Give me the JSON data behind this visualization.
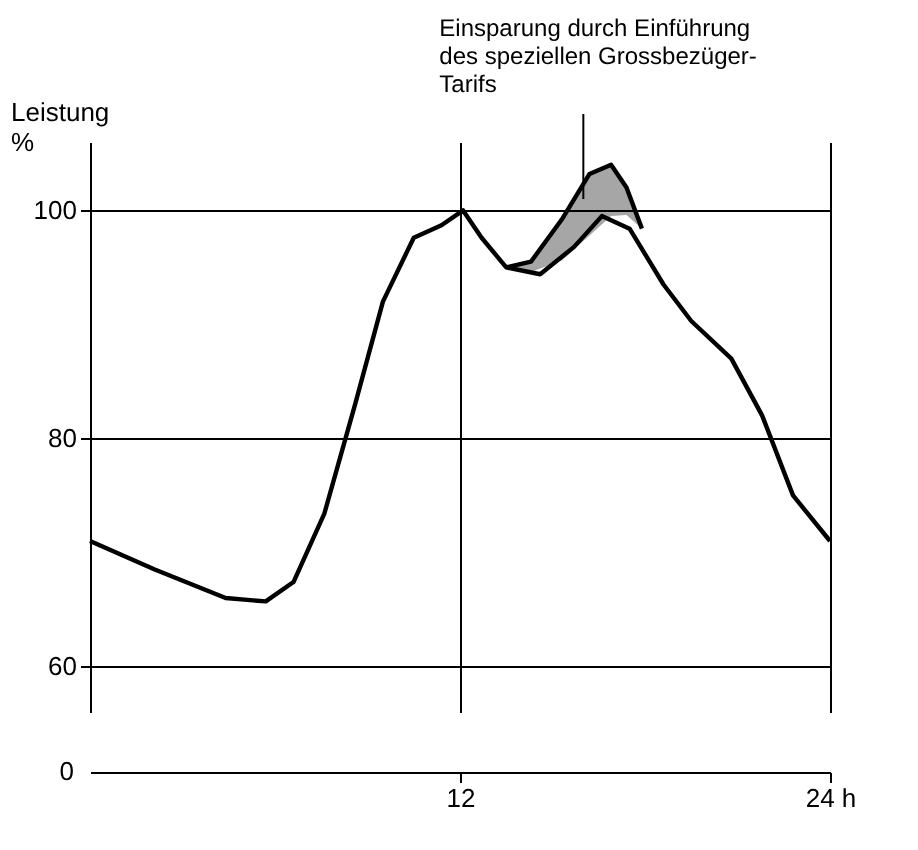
{
  "chart_data": {
    "type": "line",
    "ylabel": "Leistung\n%",
    "x": [
      0,
      2.1,
      4.4,
      5.7,
      6.6,
      7.6,
      8.6,
      9.5,
      10.5,
      11.4,
      12.1,
      12.7,
      13.5,
      14.6,
      15.7,
      16.6,
      17.5,
      18.6,
      19.5,
      20.8,
      21.8,
      22.8,
      24
    ],
    "series": [
      {
        "color": "#000000",
        "values": [
          71,
          68.5,
          66,
          65.7,
          67.4,
          73.4,
          83,
          92,
          97.6,
          98.7,
          100,
          97.6,
          95,
          94.4,
          96.8,
          99.5,
          98.4,
          93.5,
          90.3,
          87,
          82,
          75,
          71
        ]
      },
      {
        "color": "#000000",
        "x": [
          13.5,
          14.3,
          15.3,
          16.2,
          16.9,
          17.4,
          17.9
        ],
        "values": [
          95,
          95.5,
          99.2,
          103.2,
          104,
          102,
          98.4
        ],
        "lower": [
          95,
          94.6,
          95.6,
          97.8,
          99.5,
          99.6,
          98.4
        ],
        "upper": [
          95,
          95.5,
          99.2,
          103.2,
          104,
          102,
          98.4
        ]
      }
    ],
    "xlim": [
      0,
      24
    ],
    "xticks": [
      12,
      {
        "value": 24,
        "label": "24 h"
      }
    ],
    "ylim": [
      56,
      106
    ],
    "yticks": [
      60,
      80,
      100
    ],
    "grid": true,
    "marker": "none",
    "line_style": "solid",
    "annotations": [
      {
        "text": "Einsparung durch Einführung\ndes speziellen Grossbezüger-\nTarifs",
        "x": 16,
        "y": 101
      },
      "0"
    ]
  }
}
